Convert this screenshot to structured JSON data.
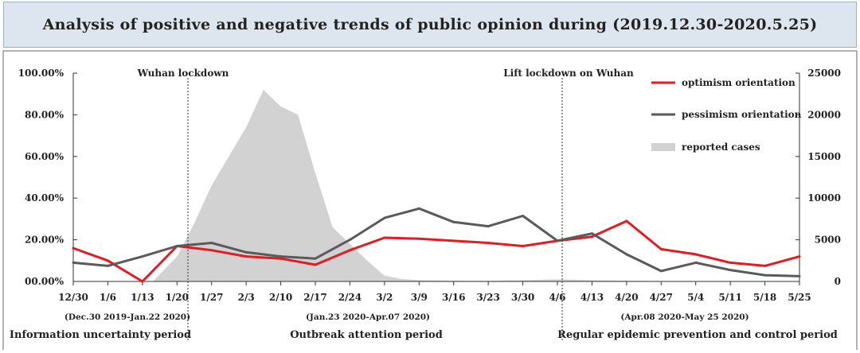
{
  "chart_data": {
    "type": "line",
    "title": "Analysis of positive and negative trends of public opinion during (2019.12.30-2020.5.25)",
    "categories": [
      "12/30",
      "1/6",
      "1/13",
      "1/20",
      "1/27",
      "2/3",
      "2/10",
      "2/17",
      "2/24",
      "3/2",
      "3/9",
      "3/16",
      "3/23",
      "3/30",
      "4/6",
      "4/13",
      "4/20",
      "4/27",
      "5/4",
      "5/11",
      "5/18",
      "5/25"
    ],
    "y_left": {
      "ticks": [
        "00.00%",
        "20.00%",
        "40.00%",
        "60.00%",
        "80.00%",
        "100.00%"
      ],
      "range": [
        0,
        100
      ]
    },
    "y_right": {
      "ticks": [
        "0",
        "5000",
        "10000",
        "15000",
        "20000",
        "25000"
      ],
      "range": [
        0,
        25000
      ]
    },
    "series": [
      {
        "name": "optimism orientation",
        "color": "#e31b23",
        "axis": "left",
        "values": [
          16,
          10,
          0,
          17,
          15,
          12,
          11,
          8,
          15,
          21,
          20.5,
          19.5,
          18.5,
          17,
          19.5,
          21.5,
          29,
          15.5,
          13,
          9,
          7.5,
          12
        ]
      },
      {
        "name": "pessimism orientation",
        "color": "#5a5a5a",
        "axis": "left",
        "values": [
          9,
          7.5,
          12,
          17,
          18.5,
          14,
          12,
          11,
          20,
          30.5,
          35,
          28.5,
          26.5,
          31.5,
          19.5,
          23,
          13,
          5,
          9,
          5.5,
          3,
          2.5
        ]
      }
    ],
    "area": {
      "name": "reported cases",
      "color": "#d2d2d2",
      "axis": "right",
      "points": [
        [
          2.3,
          0
        ],
        [
          3,
          3000
        ],
        [
          3.5,
          7000
        ],
        [
          4,
          11500
        ],
        [
          4.5,
          15000
        ],
        [
          5,
          18500
        ],
        [
          5.5,
          23000
        ],
        [
          6,
          21000
        ],
        [
          6.5,
          20000
        ],
        [
          7,
          13000
        ],
        [
          7.5,
          6500
        ],
        [
          8,
          4500
        ],
        [
          8.5,
          2500
        ],
        [
          9,
          700
        ],
        [
          9.5,
          300
        ],
        [
          10,
          150
        ],
        [
          11,
          100
        ],
        [
          12,
          80
        ],
        [
          13,
          150
        ],
        [
          14,
          250
        ],
        [
          14.5,
          200
        ],
        [
          15,
          150
        ],
        [
          16,
          100
        ],
        [
          17,
          50
        ],
        [
          18,
          40
        ],
        [
          19,
          30
        ],
        [
          20,
          20
        ],
        [
          21,
          10
        ],
        [
          21,
          0
        ]
      ]
    },
    "annotations": [
      "Wuhan lockdown",
      "Lift lockdown on Wuhan"
    ],
    "periods": [
      {
        "label": "Information uncertainty period",
        "range": "(Dec.30 2019-Jan.22 2020)"
      },
      {
        "label": "Outbreak attention period",
        "range": "(Jan.23 2020-Apr.07 2020)"
      },
      {
        "label": "Regular epidemic prevention and control period",
        "range": "(Apr.08 2020-May 25 2020)"
      }
    ],
    "legend_position": "top-right"
  }
}
